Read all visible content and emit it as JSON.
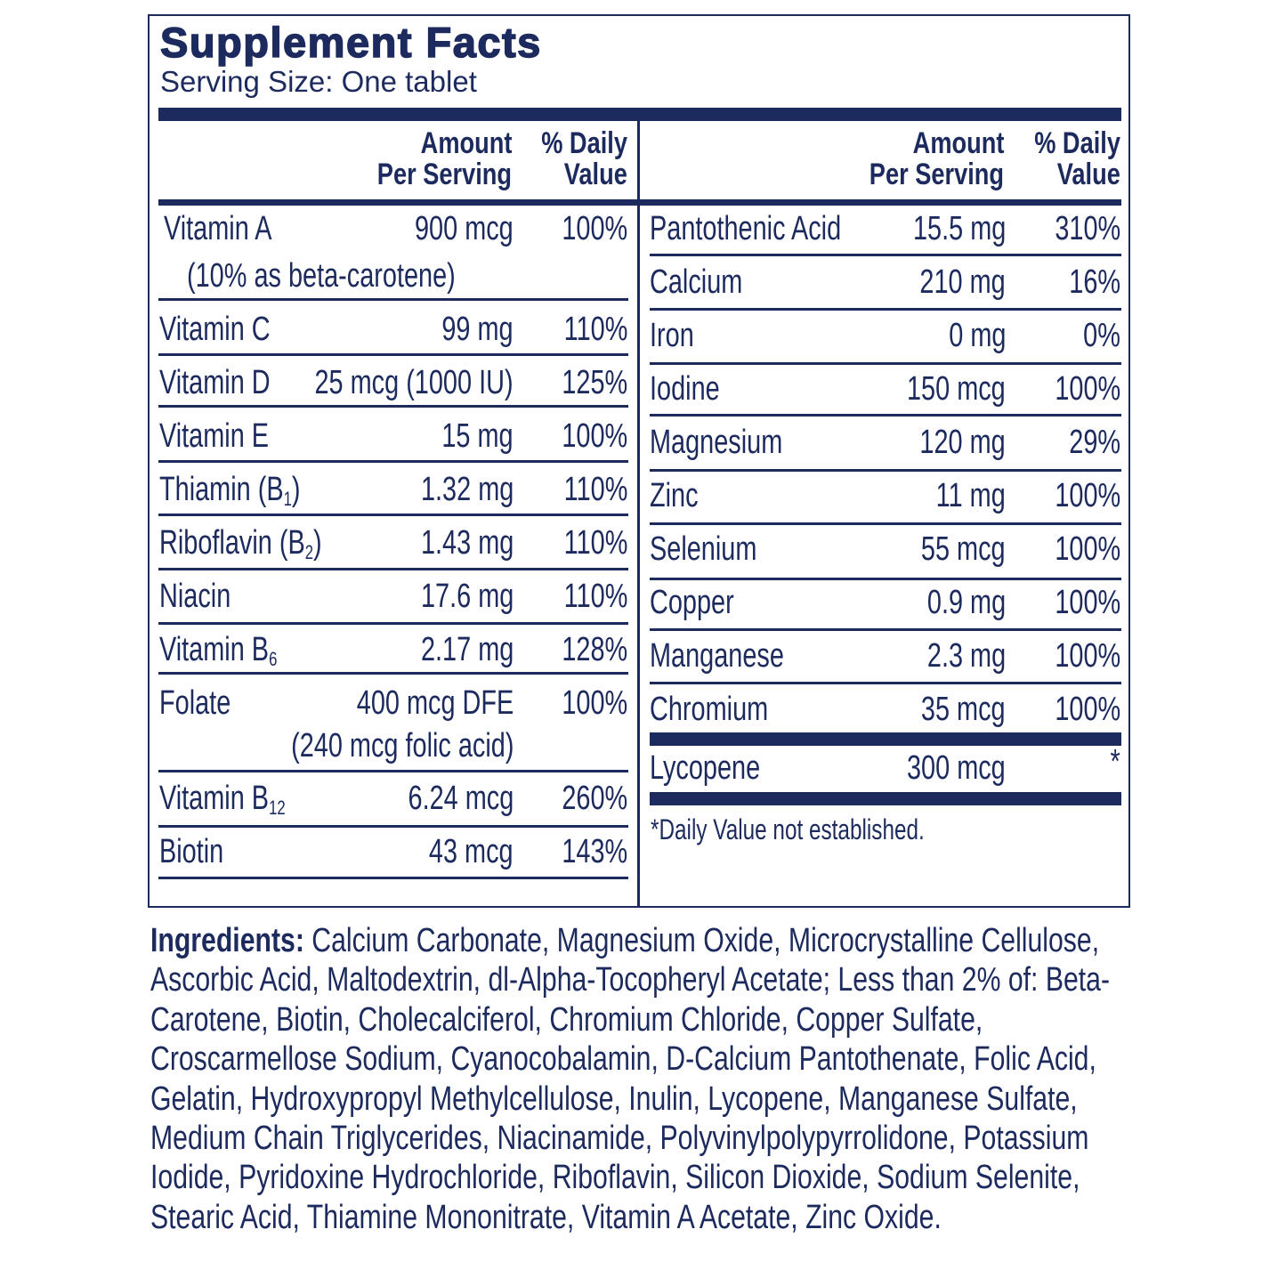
{
  "title": "Supplement Facts",
  "serving_size": "Serving Size: One tablet",
  "headers": {
    "amount_line1": "Amount",
    "amount_line2": "Per Serving",
    "dv_line1": "% Daily",
    "dv_line2": "Value"
  },
  "left_rows": [
    {
      "name": "Vitamin A",
      "amount": "900 mcg",
      "dv": "100%",
      "note": "(10% as beta-carotene)"
    },
    {
      "name": "Vitamin C",
      "amount": "99 mg",
      "dv": "110%"
    },
    {
      "name": "Vitamin D",
      "amount": "25 mcg (1000 IU)",
      "dv": "125%"
    },
    {
      "name": "Vitamin E",
      "amount": "15 mg",
      "dv": "100%"
    },
    {
      "name": "Thiamin (B",
      "sub": "1",
      "suffix": ")",
      "amount": "1.32 mg",
      "dv": "110%"
    },
    {
      "name": "Riboflavin (B",
      "sub": "2",
      "suffix": ")",
      "amount": "1.43 mg",
      "dv": "110%"
    },
    {
      "name": "Niacin",
      "amount": "17.6 mg",
      "dv": "110%"
    },
    {
      "name": "Vitamin B",
      "sub": "6",
      "amount": "2.17 mg",
      "dv": "128%"
    },
    {
      "name": "Folate",
      "amount": "400 mcg DFE",
      "dv": "100%",
      "note": "(240 mcg folic acid)"
    },
    {
      "name": "Vitamin B",
      "sub": "12",
      "amount": "6.24 mcg",
      "dv": "260%"
    },
    {
      "name": "Biotin",
      "amount": "43 mcg",
      "dv": "143%"
    }
  ],
  "right_rows": [
    {
      "name": "Pantothenic Acid",
      "amount": "15.5 mg",
      "dv": "310%"
    },
    {
      "name": "Calcium",
      "amount": "210 mg",
      "dv": "16%"
    },
    {
      "name": "Iron",
      "amount": "0 mg",
      "dv": "0%"
    },
    {
      "name": "Iodine",
      "amount": "150 mcg",
      "dv": "100%"
    },
    {
      "name": "Magnesium",
      "amount": "120 mg",
      "dv": "29%"
    },
    {
      "name": "Zinc",
      "amount": "11 mg",
      "dv": "100%"
    },
    {
      "name": "Selenium",
      "amount": "55 mcg",
      "dv": "100%"
    },
    {
      "name": "Copper",
      "amount": "0.9 mg",
      "dv": "100%"
    },
    {
      "name": "Manganese",
      "amount": "2.3 mg",
      "dv": "100%"
    },
    {
      "name": "Chromium",
      "amount": "35 mcg",
      "dv": "100%"
    }
  ],
  "lycopene": {
    "name": "Lycopene",
    "amount": "300 mcg",
    "dv": "*"
  },
  "footnote": "*Daily Value not established.",
  "ingredients": {
    "label": "Ingredients:",
    "text": " Calcium Carbonate, Magnesium Oxide, Microcrystalline Cellulose, Ascorbic Acid, Maltodextrin, dl-Alpha-Tocopheryl Acetate; Less than 2% of: Beta-Carotene, Biotin, Cholecalciferol, Chromium Chloride, Copper Sulfate, Croscarmellose Sodium, Cyanocobalamin, D-Calcium Pantothenate, Folic Acid, Gelatin, Hydroxypropyl Methylcellulose, Inulin, Lycopene, Manganese Sulfate, Medium Chain Triglycerides, Niacinamide, Polyvinylpolypyrrolidone, Potassium Iodide, Pyridoxine Hydrochloride, Riboflavin, Silicon Dioxide, Sodium Selenite, Stearic Acid, Thiamine Mononitrate, Vitamin A Acetate, Zinc Oxide."
  },
  "colors": {
    "ink": "#1c2a5e",
    "background": "#ffffff"
  }
}
